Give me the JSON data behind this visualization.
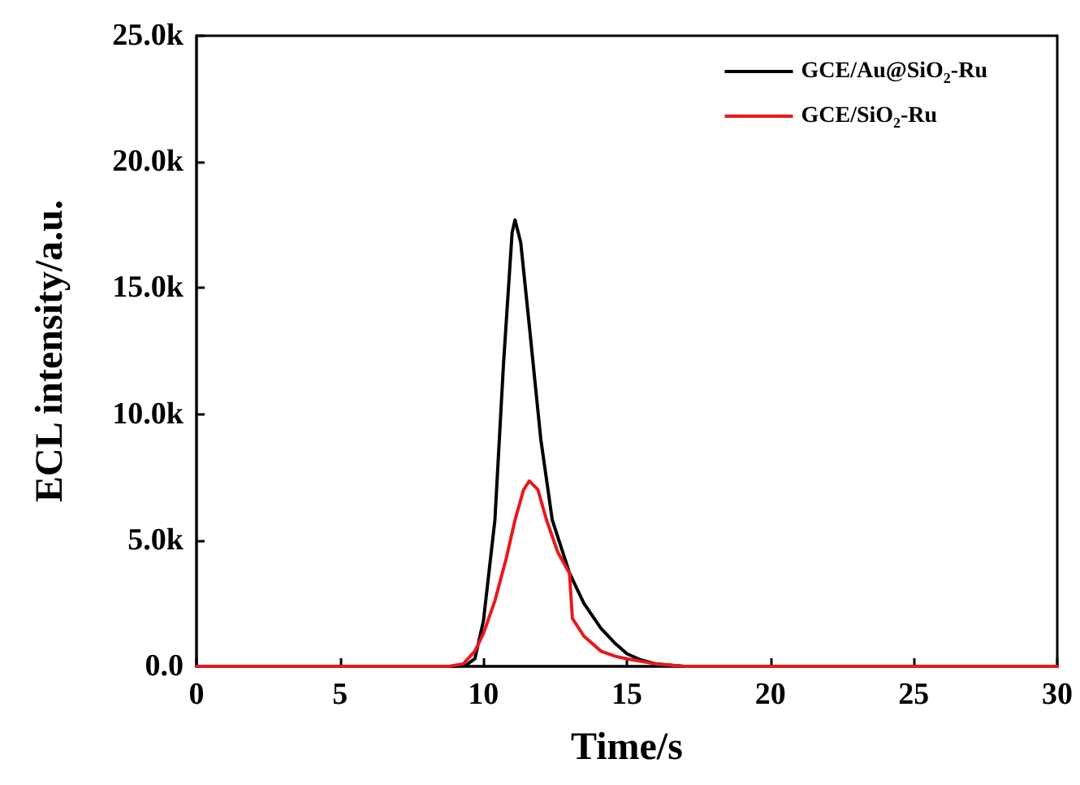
{
  "chart_data": {
    "type": "line",
    "xlabel": "Time/s",
    "ylabel": "ECL intensity/a.u.",
    "xlim": [
      0,
      30
    ],
    "xticks": [
      0,
      5,
      10,
      15,
      20,
      25,
      30
    ],
    "ylim": [
      0,
      25000
    ],
    "yticks": [
      {
        "value": 0,
        "label": "0.0"
      },
      {
        "value": 5000,
        "label": "5.0k"
      },
      {
        "value": 10000,
        "label": "10.0k"
      },
      {
        "value": 15000,
        "label": "15.0k"
      },
      {
        "value": 20000,
        "label": "20.0k"
      },
      {
        "value": 25000,
        "label": "25.0k"
      }
    ],
    "grid": false,
    "legend": "top right",
    "marker": "none",
    "line_style": "solid",
    "series": [
      {
        "name": "GCE/Au@SiO$_{2}$-Ru",
        "color": "#000000",
        "x": [
          0,
          5,
          9,
          9.4,
          9.7,
          10,
          10.4,
          10.7,
          11,
          11.1,
          11.3,
          11.6,
          12,
          12.4,
          13,
          13.5,
          14.1,
          14.6,
          15,
          15.5,
          16,
          17,
          20,
          25,
          30
        ],
        "values": [
          0,
          0,
          0,
          50,
          300,
          1800,
          5800,
          12000,
          17200,
          17700,
          16800,
          13500,
          9000,
          5800,
          3700,
          2500,
          1500,
          900,
          500,
          250,
          100,
          0,
          0,
          0,
          0
        ]
      },
      {
        "name": "GCE/SiO$_{2}$-Ru",
        "color": "#e8191b",
        "x": [
          0,
          5,
          8.8,
          9.3,
          9.7,
          10,
          10.4,
          10.8,
          11.1,
          11.4,
          11.6,
          11.9,
          12.2,
          12.6,
          13,
          13.1,
          13.5,
          14.1,
          14.6,
          15,
          16,
          17,
          20,
          25,
          30
        ],
        "values": [
          0,
          0,
          0,
          100,
          600,
          1300,
          2600,
          4300,
          5800,
          7000,
          7350,
          7000,
          5800,
          4500,
          3700,
          1900,
          1200,
          600,
          400,
          300,
          100,
          0,
          0,
          0,
          0
        ]
      }
    ]
  }
}
